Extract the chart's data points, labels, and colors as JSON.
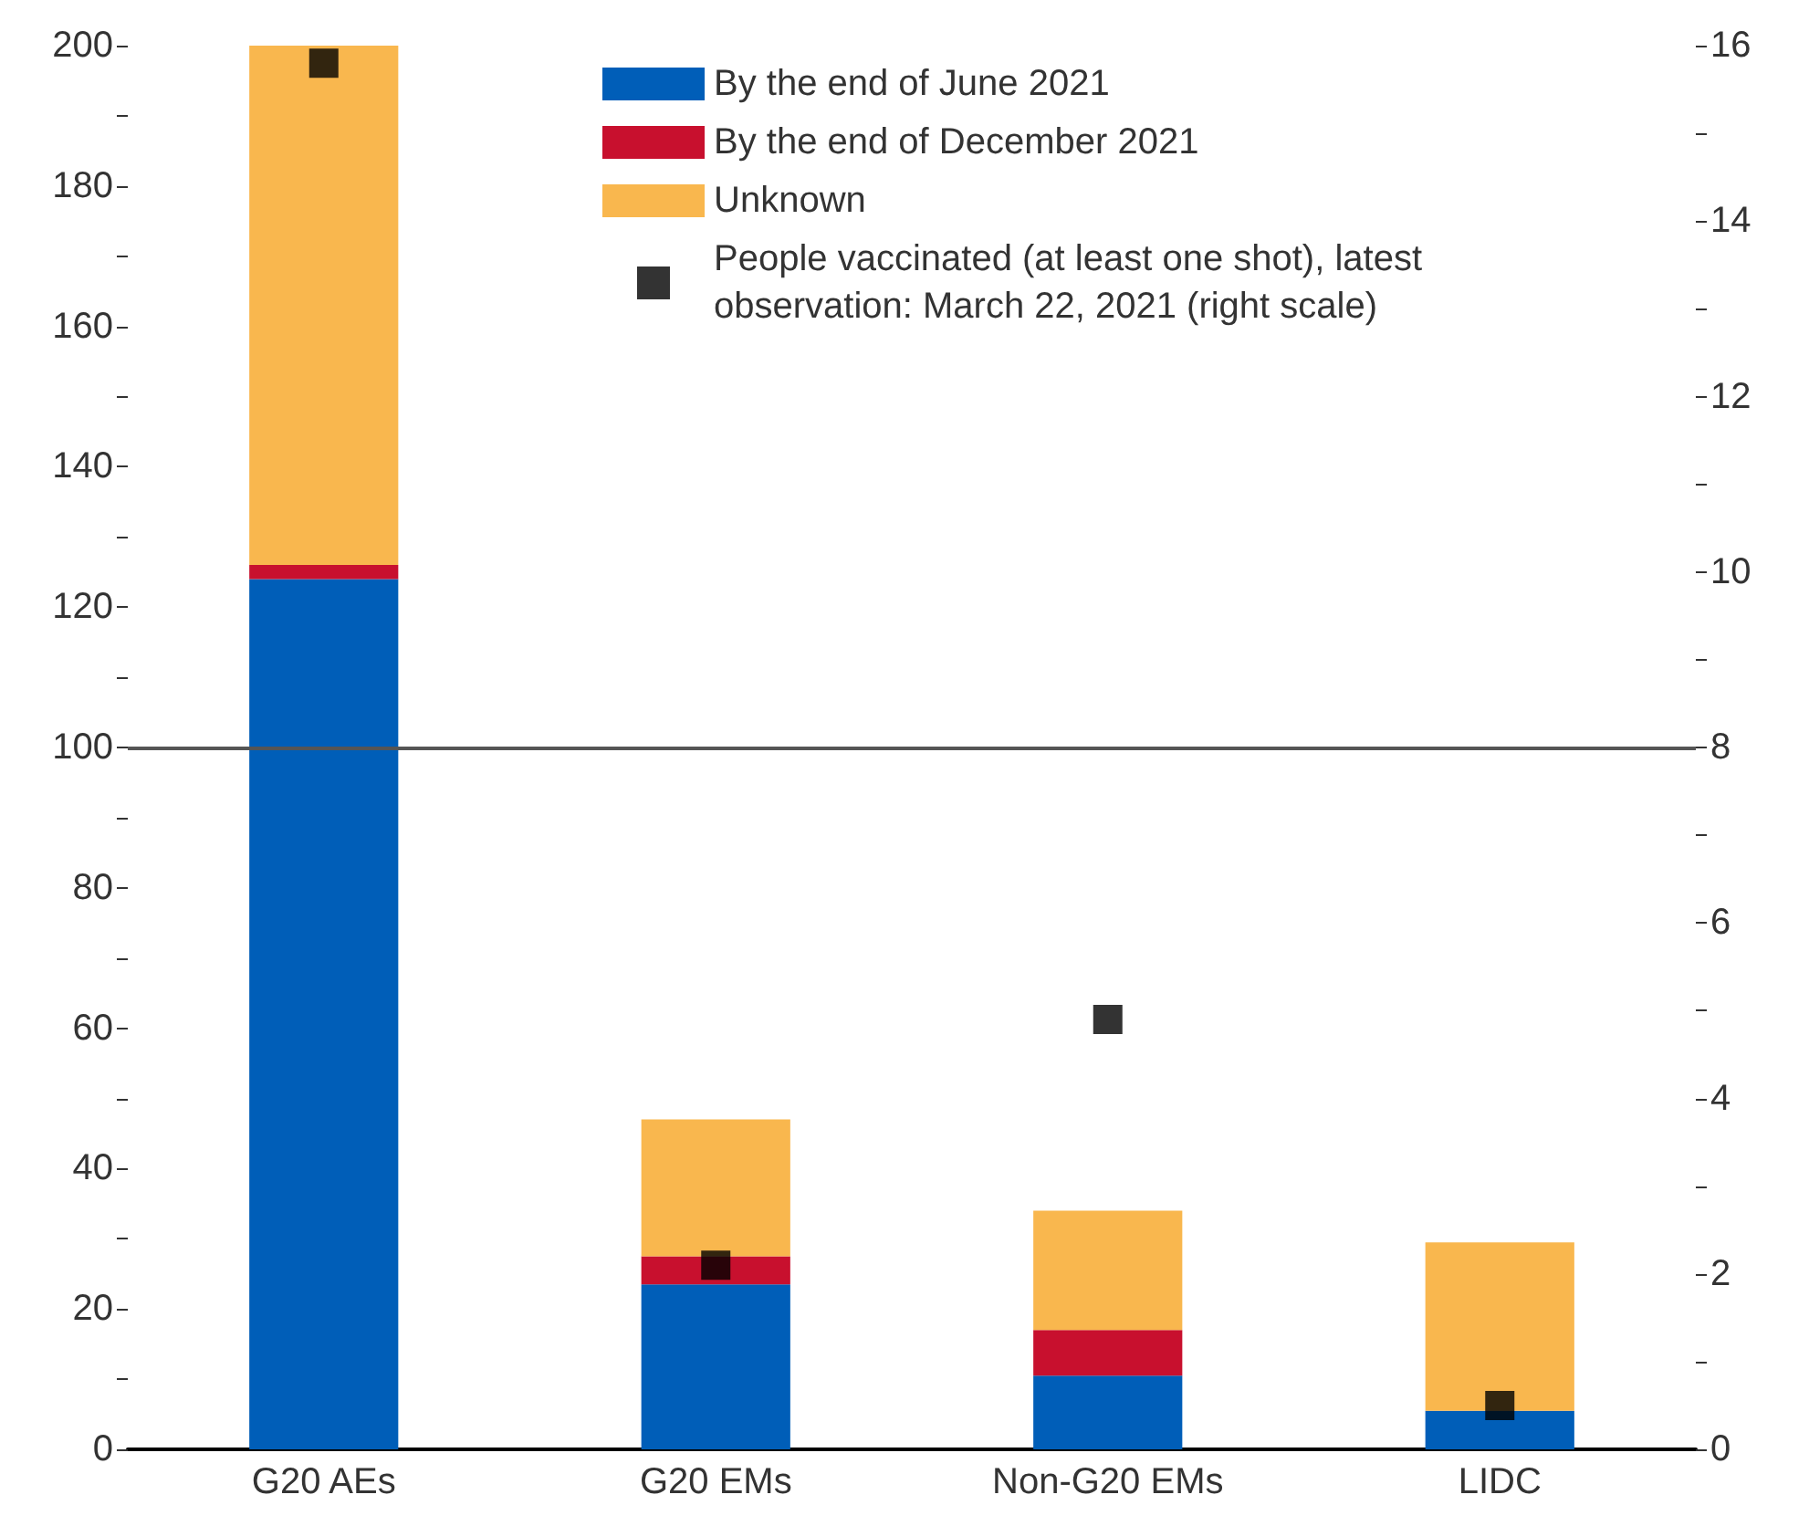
{
  "chart_data": {
    "type": "bar",
    "stacked": true,
    "categories": [
      "G20 AEs",
      "G20 EMs",
      "Non-G20 EMs",
      "LIDC"
    ],
    "series": [
      {
        "name": "By the end of June 2021",
        "color": "#005eb8",
        "values": [
          124,
          23.5,
          10.5,
          5.5
        ]
      },
      {
        "name": "By the end of December 2021",
        "color": "#c8102e",
        "values": [
          2,
          4,
          6.5,
          0
        ]
      },
      {
        "name": "Unknown",
        "color": "#f9b74e",
        "values": [
          74,
          19.5,
          17,
          24
        ]
      },
      {
        "name": "People vaccinated (at least one shot), latest observation: March 22, 2021 (right scale)",
        "type": "scatter",
        "axis": "y2",
        "marker": "square",
        "color": "#000000",
        "x": [
          "G20 AEs",
          "G20 EMs",
          "Non-G20 EMs",
          "LIDC"
        ],
        "values": [
          15.8,
          2.1,
          4.9,
          0.5
        ]
      }
    ],
    "ylim": [
      0,
      200
    ],
    "yticks": [
      0,
      {
        "value": 10,
        "label": null
      },
      20,
      {
        "value": 30,
        "label": null
      },
      40,
      {
        "value": 50,
        "label": null
      },
      60,
      {
        "value": 70,
        "label": null
      },
      80,
      {
        "value": 90,
        "label": null
      },
      100,
      {
        "value": 110,
        "label": null
      },
      120,
      {
        "value": 130,
        "label": null
      },
      140,
      {
        "value": 150,
        "label": null
      },
      160,
      {
        "value": 170,
        "label": null
      },
      180,
      {
        "value": 190,
        "label": null
      },
      200
    ],
    "y2lim": [
      0,
      16
    ],
    "y2ticks": [
      0,
      {
        "value": 1,
        "label": null
      },
      2,
      {
        "value": 3,
        "label": null
      },
      4,
      {
        "value": 5,
        "label": null
      },
      6,
      {
        "value": 7,
        "label": null
      },
      8,
      {
        "value": 9,
        "label": null
      },
      10,
      {
        "value": 11,
        "label": null
      },
      12,
      {
        "value": 13,
        "label": null
      },
      14,
      {
        "value": 15,
        "label": null
      },
      16
    ],
    "ref_lines": [
      {
        "axis": "y",
        "value": 100,
        "color": "#555555"
      }
    ],
    "grid": false,
    "legend": "top right"
  }
}
